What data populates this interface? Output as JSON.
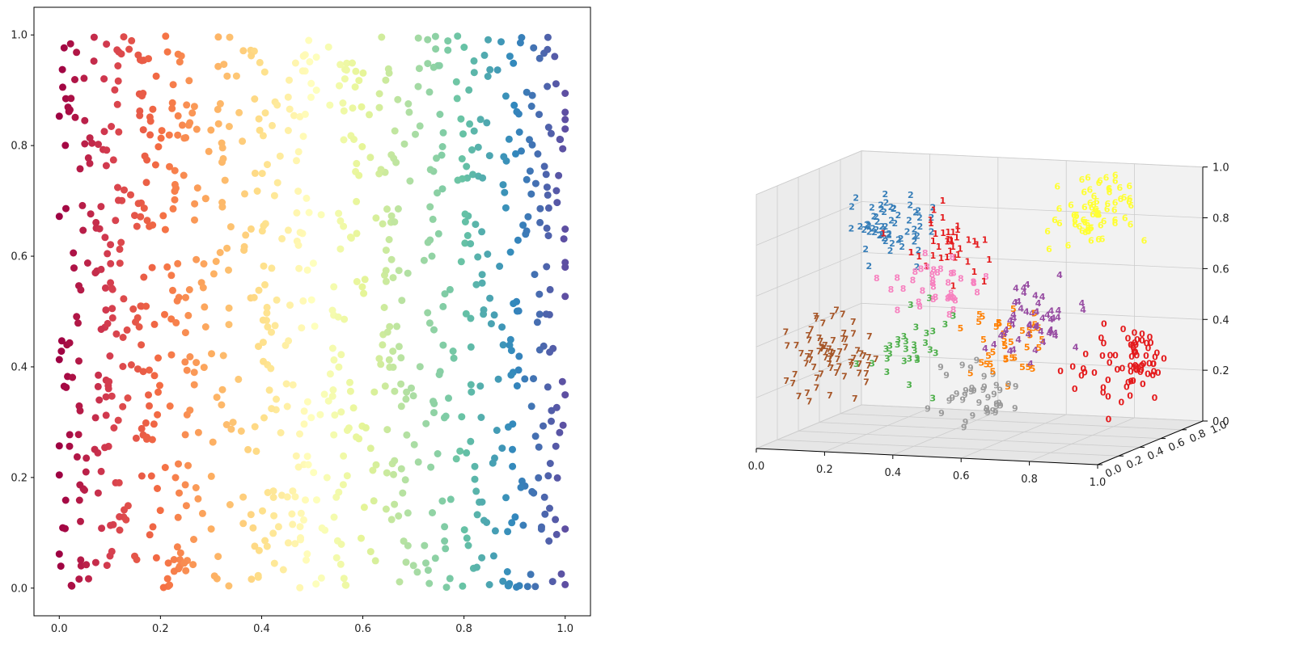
{
  "chart_data": [
    {
      "type": "scatter",
      "title": "",
      "xlabel": "",
      "ylabel": "",
      "xlim": [
        -0.05,
        1.05
      ],
      "ylim": [
        -0.05,
        1.05
      ],
      "xticks": [
        "0.0",
        "0.2",
        "0.4",
        "0.6",
        "0.8",
        "1.0"
      ],
      "yticks": [
        "0.0",
        "0.2",
        "0.4",
        "0.6",
        "0.8",
        "1.0"
      ],
      "point_count": 1000,
      "colormap": "Spectral",
      "color_by": "x",
      "grid": false,
      "colormap_stops": [
        "#9e0142",
        "#d53e4f",
        "#f46d43",
        "#fdae61",
        "#fee08b",
        "#ffffbf",
        "#e6f598",
        "#abdda4",
        "#66c2a5",
        "#3288bd",
        "#5e4fa2"
      ],
      "x_column_centers": [
        0.03,
        0.1,
        0.17,
        0.24,
        0.32,
        0.4,
        0.48,
        0.57,
        0.66,
        0.74,
        0.82,
        0.9,
        0.97
      ]
    },
    {
      "type": "scatter3d",
      "title": "",
      "xlabel": "",
      "ylabel": "",
      "zlabel": "",
      "xlim": [
        0,
        1
      ],
      "ylim": [
        0,
        1
      ],
      "zlim": [
        0,
        1
      ],
      "xticks": [
        "0.0",
        "0.2",
        "0.4",
        "0.6",
        "0.8",
        "1.0"
      ],
      "yticks": [
        "0.0",
        "0.2",
        "0.4",
        "0.6",
        "0.8",
        "1.0"
      ],
      "zticks": [
        "0.0",
        "0.2",
        "0.4",
        "0.6",
        "0.8",
        "1.0"
      ],
      "marker": "digit label",
      "grid": true,
      "clusters": [
        {
          "label": "0",
          "color": "#e41a1c",
          "center": [
            0.95,
            0.5,
            0.3
          ],
          "count": 70
        },
        {
          "label": "1",
          "color": "#e41a1c",
          "center": [
            0.42,
            0.5,
            0.72
          ],
          "count": 40
        },
        {
          "label": "2",
          "color": "#377eb8",
          "center": [
            0.2,
            0.6,
            0.78
          ],
          "count": 60
        },
        {
          "label": "3",
          "color": "#4daf4a",
          "center": [
            0.32,
            0.4,
            0.32
          ],
          "count": 30
        },
        {
          "label": "4",
          "color": "#984ea3",
          "center": [
            0.68,
            0.4,
            0.45
          ],
          "count": 50
        },
        {
          "label": "5",
          "color": "#ff7f00",
          "center": [
            0.62,
            0.4,
            0.38
          ],
          "count": 40
        },
        {
          "label": "6",
          "color": "#ffff33",
          "center": [
            0.78,
            0.65,
            0.85
          ],
          "count": 70
        },
        {
          "label": "7",
          "color": "#a65628",
          "center": [
            0.08,
            0.4,
            0.3
          ],
          "count": 70
        },
        {
          "label": "8",
          "color": "#f781bf",
          "center": [
            0.4,
            0.45,
            0.58
          ],
          "count": 40
        },
        {
          "label": "9",
          "color": "#999999",
          "center": [
            0.55,
            0.35,
            0.18
          ],
          "count": 40
        }
      ]
    }
  ]
}
